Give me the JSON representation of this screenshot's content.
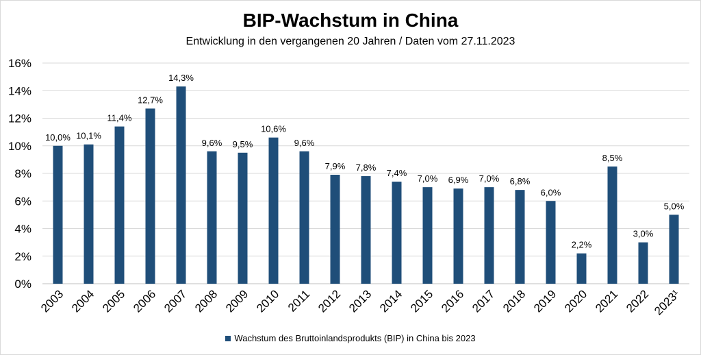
{
  "colors": {
    "bar": "#1f4e79",
    "grid": "#d9d9d9",
    "axis": "#bfbfbf"
  },
  "chart_data": {
    "type": "bar",
    "title": "BIP-Wachstum in China",
    "subtitle": "Entwicklung in den vergangenen 20 Jahren / Daten vom 27.11.2023",
    "categories": [
      "2003",
      "2004",
      "2005",
      "2006",
      "2007",
      "2008",
      "2009",
      "2010",
      "2011",
      "2012",
      "2013",
      "2014",
      "2015",
      "2016",
      "2017",
      "2018",
      "2019",
      "2020",
      "2021",
      "2022",
      "2023¹"
    ],
    "series": [
      {
        "name": "Wachstum des Bruttoinlandsprodukts (BIP) in China bis 2023",
        "values": [
          10.0,
          10.1,
          11.4,
          12.7,
          14.3,
          9.6,
          9.5,
          10.6,
          9.6,
          7.9,
          7.8,
          7.4,
          7.0,
          6.9,
          7.0,
          6.8,
          6.0,
          2.2,
          8.5,
          3.0,
          5.0
        ],
        "labels": [
          "10,0%",
          "10,1%",
          "11,4%",
          "12,7%",
          "14,3%",
          "9,6%",
          "9,5%",
          "10,6%",
          "9,6%",
          "7,9%",
          "7,8%",
          "7,4%",
          "7,0%",
          "6,9%",
          "7,0%",
          "6,8%",
          "6,0%",
          "2,2%",
          "8,5%",
          "3,0%",
          "5,0%"
        ]
      }
    ],
    "yticks": [
      "0%",
      "2%",
      "4%",
      "6%",
      "8%",
      "10%",
      "12%",
      "14%",
      "16%"
    ],
    "ytick_values": [
      0,
      2,
      4,
      6,
      8,
      10,
      12,
      14,
      16
    ],
    "ylim": [
      0,
      16
    ],
    "grid": true,
    "legend_position": "bottom"
  }
}
